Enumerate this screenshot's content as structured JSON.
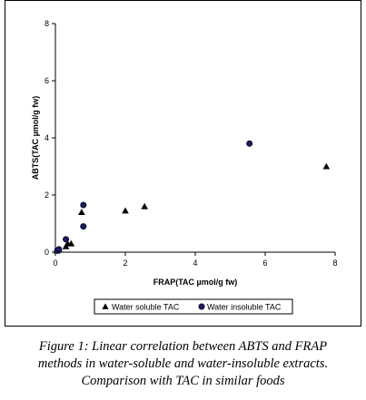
{
  "chart_data": {
    "type": "scatter",
    "title": "",
    "xlabel": "FRAP(TAC µmol/g fw)",
    "ylabel": "ABTS(TAC µmol/g fw)",
    "xlim": [
      0,
      8
    ],
    "ylim": [
      0,
      8
    ],
    "xticks": [
      "0",
      "2",
      "4",
      "6",
      "8"
    ],
    "yticks": [
      "0",
      "2",
      "4",
      "6",
      "8"
    ],
    "legend_position": "bottom",
    "series": [
      {
        "name": "Water soluble TAC",
        "marker": "triangle",
        "color": "#000000",
        "points": [
          {
            "x": 0.05,
            "y": 0.05
          },
          {
            "x": 0.1,
            "y": 0.1
          },
          {
            "x": 0.3,
            "y": 0.2
          },
          {
            "x": 0.35,
            "y": 0.3
          },
          {
            "x": 0.45,
            "y": 0.3
          },
          {
            "x": 0.75,
            "y": 1.4
          },
          {
            "x": 2.0,
            "y": 1.45
          },
          {
            "x": 2.55,
            "y": 1.6
          },
          {
            "x": 7.75,
            "y": 3.0
          }
        ]
      },
      {
        "name": "Water insoluble TAC",
        "marker": "circle",
        "color": "#1a1a66",
        "points": [
          {
            "x": 0.05,
            "y": 0.05
          },
          {
            "x": 0.1,
            "y": 0.1
          },
          {
            "x": 0.3,
            "y": 0.45
          },
          {
            "x": 0.8,
            "y": 0.9
          },
          {
            "x": 0.8,
            "y": 1.65
          },
          {
            "x": 5.55,
            "y": 3.8
          }
        ]
      }
    ]
  },
  "caption": {
    "lines": [
      "Figure 1: Linear correlation between ABTS and FRAP",
      "methods in water-soluble and water-insoluble extracts.",
      "Comparison with TAC in similar foods"
    ]
  }
}
